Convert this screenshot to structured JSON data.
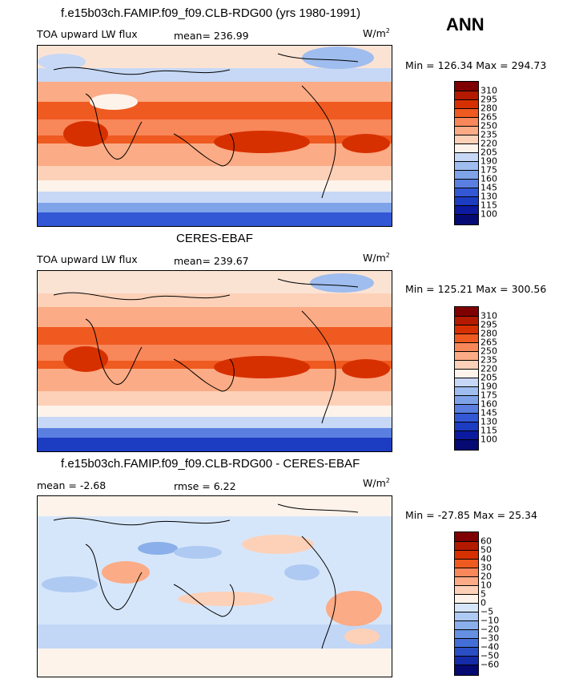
{
  "season": "ANN",
  "panels": [
    {
      "id": "model",
      "title": "f.e15b03ch.FAMIP.f09_f09.CLB-RDG00 (yrs 1980-1991)",
      "left_label": "TOA upward LW flux",
      "center_label": "mean=  236.99",
      "units": "W/m",
      "units_sup": "2",
      "minmax": "Min = 126.34 Max = 294.73",
      "colorbar": [
        "310",
        "295",
        "280",
        "265",
        "250",
        "235",
        "220",
        "205",
        "190",
        "175",
        "160",
        "145",
        "130",
        "115",
        "100"
      ]
    },
    {
      "id": "obs",
      "title": "CERES-EBAF",
      "left_label": "TOA upward LW flux",
      "center_label": "mean=  239.67",
      "units": "W/m",
      "units_sup": "2",
      "minmax": "Min = 125.21 Max = 300.56",
      "colorbar": [
        "310",
        "295",
        "280",
        "265",
        "250",
        "235",
        "220",
        "205",
        "190",
        "175",
        "160",
        "145",
        "130",
        "115",
        "100"
      ]
    },
    {
      "id": "diff",
      "title": "f.e15b03ch.FAMIP.f09_f09.CLB-RDG00 - CERES-EBAF",
      "left_label": "mean =   -2.68",
      "center_label": "rmse =    6.22",
      "units": "W/m",
      "units_sup": "2",
      "minmax": "Min = -27.85 Max =  25.34",
      "colorbar": [
        "60",
        "50",
        "40",
        "30",
        "20",
        "10",
        "5",
        "0",
        "−5",
        "−10",
        "−20",
        "−30",
        "−40",
        "−50",
        "−60"
      ]
    }
  ],
  "colors": {
    "abs_scale": [
      "#7f0000",
      "#b31a00",
      "#d73000",
      "#ef5a20",
      "#f8875a",
      "#fbab85",
      "#fdd1b8",
      "#fdf3ea",
      "#c6d8f5",
      "#9fbdee",
      "#7fa3e8",
      "#5a7fe0",
      "#3258d6",
      "#1c3cc2",
      "#0b1a9e",
      "#050a72"
    ],
    "diff_scale": [
      "#7f0000",
      "#b31a00",
      "#d73000",
      "#ef5a20",
      "#f8875a",
      "#fbab85",
      "#fdd1b8",
      "#fdf3ea",
      "#d6e6fa",
      "#aecaf2",
      "#8aafea",
      "#6690e1",
      "#436ed7",
      "#2a4ec4",
      "#142ca7",
      "#050a72"
    ]
  }
}
